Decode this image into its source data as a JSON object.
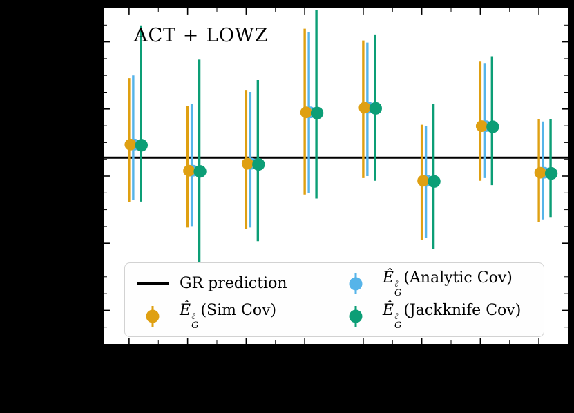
{
  "chart_data": {
    "type": "scatter",
    "title": "ACT + LOWZ",
    "note": "Error-bar plot; axis tick labels are not visible (rendered black on black). Y values given as normalized plot fraction (0=bottom, 1=top of axes).",
    "x_index": [
      1,
      2,
      3,
      4,
      5,
      6,
      7,
      8
    ],
    "ylim": [
      0,
      1
    ],
    "gr_prediction_y": 0.555,
    "gr_line_color": "#000000",
    "legend_position": "lower center inside axes",
    "series": [
      {
        "name": "E_G^l (Sim Cov)",
        "color": "#DFA012",
        "y": [
          0.594,
          0.516,
          0.537,
          0.69,
          0.704,
          0.486,
          0.649,
          0.51
        ],
        "err_lo": [
          0.422,
          0.347,
          0.343,
          0.445,
          0.494,
          0.31,
          0.486,
          0.363
        ],
        "err_hi": [
          0.792,
          0.71,
          0.755,
          0.939,
          0.904,
          0.653,
          0.841,
          0.669
        ]
      },
      {
        "name": "E_G^l (Analytic Cov)",
        "color": "#56B4E9",
        "y": [
          0.594,
          0.516,
          0.537,
          0.69,
          0.704,
          0.486,
          0.649,
          0.51
        ],
        "err_lo": [
          0.429,
          0.351,
          0.347,
          0.449,
          0.5,
          0.316,
          0.494,
          0.371
        ],
        "err_hi": [
          0.8,
          0.714,
          0.751,
          0.929,
          0.898,
          0.649,
          0.837,
          0.663
        ]
      },
      {
        "name": "E_G^l (Jackknife Cov)",
        "color": "#0C9E76",
        "y": [
          0.592,
          0.514,
          0.535,
          0.688,
          0.702,
          0.484,
          0.647,
          0.508
        ],
        "err_lo": [
          0.424,
          0.224,
          0.306,
          0.433,
          0.486,
          0.282,
          0.473,
          0.378
        ],
        "err_hi": [
          0.949,
          0.847,
          0.786,
          0.996,
          0.922,
          0.714,
          0.857,
          0.669
        ]
      }
    ]
  },
  "legend": {
    "items": [
      {
        "label": "GR prediction",
        "marker": "line",
        "color": "#000000"
      },
      {
        "ehat": "Ê",
        "sup": "ℓ",
        "sub": "G",
        "rest": "(Sim Cov)",
        "marker": "dot",
        "color": "#DFA012"
      },
      {
        "ehat": "Ê",
        "sup": "ℓ",
        "sub": "G",
        "rest": "(Analytic Cov)",
        "marker": "dot",
        "color": "#56B4E9"
      },
      {
        "ehat": "Ê",
        "sup": "ℓ",
        "sub": "G",
        "rest": "(Jackknife Cov)",
        "marker": "dot",
        "color": "#0C9E76"
      }
    ]
  }
}
